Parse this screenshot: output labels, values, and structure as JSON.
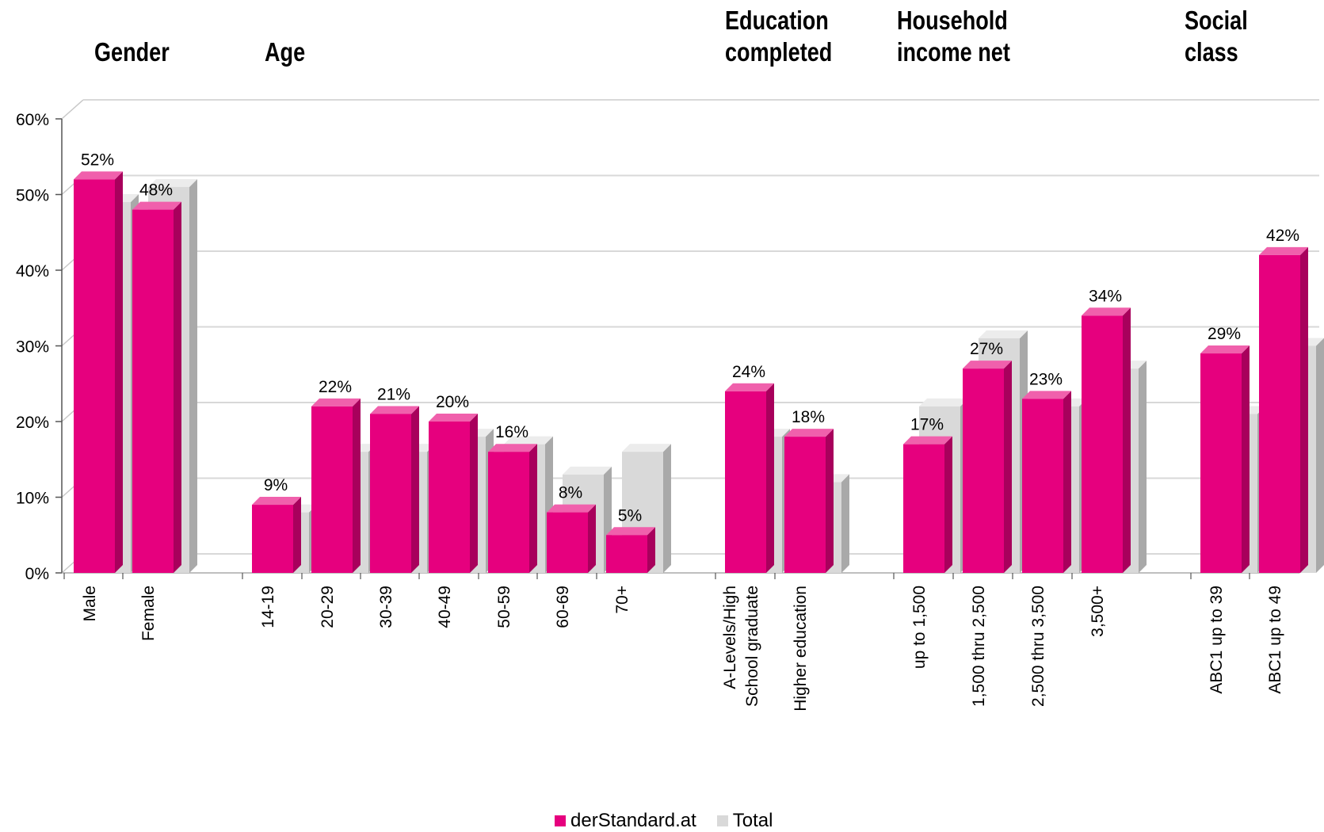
{
  "chart_data": {
    "type": "bar",
    "group_titles": [
      {
        "lines": [
          "Gender"
        ]
      },
      {
        "lines": [
          "Age"
        ]
      },
      {
        "lines": [
          "Education",
          "completed"
        ]
      },
      {
        "lines": [
          "Household",
          "income net"
        ]
      },
      {
        "lines": [
          "Social",
          "class"
        ]
      }
    ],
    "categories": [
      [
        "Male"
      ],
      [
        "Female"
      ],
      [
        "14-19"
      ],
      [
        "20-29"
      ],
      [
        "30-39"
      ],
      [
        "40-49"
      ],
      [
        "50-59"
      ],
      [
        "60-69"
      ],
      [
        "70+"
      ],
      [
        "A-Levels/High",
        "School graduate"
      ],
      [
        "Higher education"
      ],
      [
        "up to 1,500"
      ],
      [
        "1,500 thru 2,500"
      ],
      [
        "2,500 thru 3,500"
      ],
      [
        "3,500+"
      ],
      [
        "ABC1 up to 39"
      ],
      [
        "ABC1 up to 49"
      ]
    ],
    "series": [
      {
        "name": "derStandard.at",
        "color": "#e6007e",
        "values": [
          52,
          48,
          9,
          22,
          21,
          20,
          16,
          8,
          5,
          24,
          18,
          17,
          27,
          23,
          34,
          29,
          42
        ],
        "labels": [
          "52%",
          "48%",
          "9%",
          "22%",
          "21%",
          "20%",
          "16%",
          "8%",
          "5%",
          "24%",
          "18%",
          "17%",
          "27%",
          "23%",
          "34%",
          "29%",
          "42%"
        ]
      },
      {
        "name": "Total",
        "color": "#d9d9d9",
        "values": [
          49,
          51,
          8,
          16,
          16,
          18,
          17,
          13,
          16,
          18,
          12,
          22,
          31,
          22,
          27,
          21,
          30
        ]
      }
    ],
    "yaxis": {
      "min": 0,
      "max": 60,
      "step": 10,
      "tick_labels": [
        "0%",
        "10%",
        "20%",
        "30%",
        "40%",
        "50%",
        "60%"
      ]
    },
    "grid": true,
    "legend_position": "bottom"
  }
}
